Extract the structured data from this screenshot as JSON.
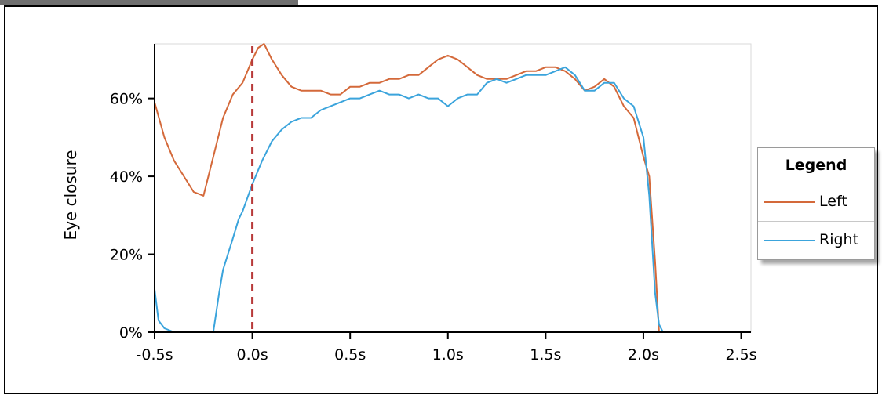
{
  "colors": {
    "left": "#d4693a",
    "right": "#3ba4dc",
    "marker": "#b83a3a",
    "plot_border": "#dadada"
  },
  "chart_data": {
    "type": "line",
    "title": "",
    "xlabel": "",
    "ylabel": "Eye closure",
    "xlim": [
      -0.5,
      2.55
    ],
    "ylim": [
      0,
      74
    ],
    "x_ticks": [
      -0.5,
      0.0,
      0.5,
      1.0,
      1.5,
      2.0,
      2.5
    ],
    "x_tick_labels": [
      "-0.5s",
      "0.0s",
      "0.5s",
      "1.0s",
      "1.5s",
      "2.0s",
      "2.5s"
    ],
    "y_ticks": [
      0,
      20,
      40,
      60
    ],
    "y_tick_labels": [
      "0%",
      "20%",
      "40%",
      "60%"
    ],
    "grid": false,
    "vertical_marker": {
      "x": 0.0,
      "style": "dashed"
    },
    "legend": {
      "title": "Legend",
      "placement": "right"
    },
    "series": [
      {
        "name": "Left",
        "x": [
          -0.5,
          -0.45,
          -0.4,
          -0.35,
          -0.3,
          -0.25,
          -0.2,
          -0.15,
          -0.1,
          -0.05,
          0.0,
          0.03,
          0.06,
          0.1,
          0.15,
          0.2,
          0.25,
          0.3,
          0.35,
          0.4,
          0.45,
          0.5,
          0.55,
          0.6,
          0.65,
          0.7,
          0.75,
          0.8,
          0.85,
          0.9,
          0.95,
          1.0,
          1.05,
          1.1,
          1.15,
          1.2,
          1.25,
          1.3,
          1.35,
          1.4,
          1.45,
          1.5,
          1.55,
          1.6,
          1.65,
          1.7,
          1.75,
          1.8,
          1.85,
          1.9,
          1.95,
          2.0,
          2.03,
          2.06,
          2.08,
          2.1,
          2.15,
          2.2,
          2.3,
          2.4,
          2.5,
          2.55
        ],
        "y": [
          59,
          50,
          44,
          40,
          36,
          35,
          45,
          55,
          61,
          64,
          70,
          73,
          74,
          70,
          66,
          63,
          62,
          62,
          62,
          61,
          61,
          63,
          63,
          64,
          64,
          65,
          65,
          66,
          66,
          68,
          70,
          71,
          70,
          68,
          66,
          65,
          65,
          65,
          66,
          67,
          67,
          68,
          68,
          67,
          65,
          62,
          63,
          65,
          63,
          58,
          55,
          45,
          40,
          18,
          0,
          0,
          0,
          0,
          0,
          0,
          0,
          0
        ]
      },
      {
        "name": "Right",
        "x": [
          -0.5,
          -0.48,
          -0.45,
          -0.4,
          -0.35,
          -0.3,
          -0.25,
          -0.22,
          -0.2,
          -0.17,
          -0.15,
          -0.1,
          -0.07,
          -0.05,
          0.0,
          0.05,
          0.1,
          0.15,
          0.2,
          0.25,
          0.3,
          0.35,
          0.4,
          0.45,
          0.5,
          0.55,
          0.6,
          0.65,
          0.7,
          0.75,
          0.8,
          0.85,
          0.9,
          0.95,
          1.0,
          1.05,
          1.1,
          1.15,
          1.2,
          1.25,
          1.3,
          1.35,
          1.4,
          1.45,
          1.5,
          1.55,
          1.6,
          1.65,
          1.7,
          1.75,
          1.8,
          1.85,
          1.9,
          1.95,
          2.0,
          2.03,
          2.06,
          2.08,
          2.1,
          2.13,
          2.15,
          2.2,
          2.3,
          2.4,
          2.5,
          2.55
        ],
        "y": [
          11,
          3,
          1,
          0,
          0,
          0,
          0,
          0,
          0,
          10,
          16,
          24,
          29,
          31,
          38,
          44,
          49,
          52,
          54,
          55,
          55,
          57,
          58,
          59,
          60,
          60,
          61,
          62,
          61,
          61,
          60,
          61,
          60,
          60,
          58,
          60,
          61,
          61,
          64,
          65,
          64,
          65,
          66,
          66,
          66,
          67,
          68,
          66,
          62,
          62,
          64,
          64,
          60,
          58,
          50,
          35,
          10,
          2,
          0,
          0,
          0,
          0,
          0,
          0,
          0,
          0
        ]
      }
    ]
  }
}
